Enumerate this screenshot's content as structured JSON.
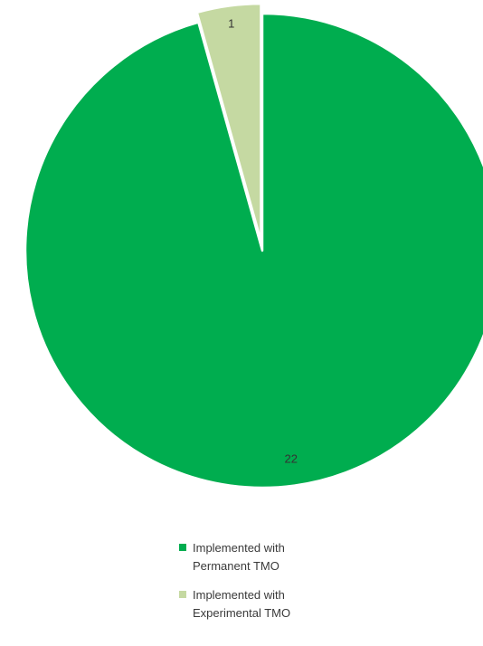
{
  "chart_data": {
    "type": "pie",
    "slices": [
      {
        "label": "Implemented with Permanent TMO",
        "value": 22,
        "color": "#00ad4f"
      },
      {
        "label": "Implemented with Experimental TMO",
        "value": 1,
        "color": "#c5d9a2"
      }
    ],
    "data_labels": [
      "22",
      "1"
    ],
    "legend_position": "bottom",
    "start": "top",
    "direction": "clockwise"
  },
  "legend": {
    "items": [
      {
        "label": "Implemented with Permanent TMO",
        "color": "#00ad4f"
      },
      {
        "label": "Implemented with Experimental TMO",
        "color": "#c5d9a2"
      }
    ]
  }
}
